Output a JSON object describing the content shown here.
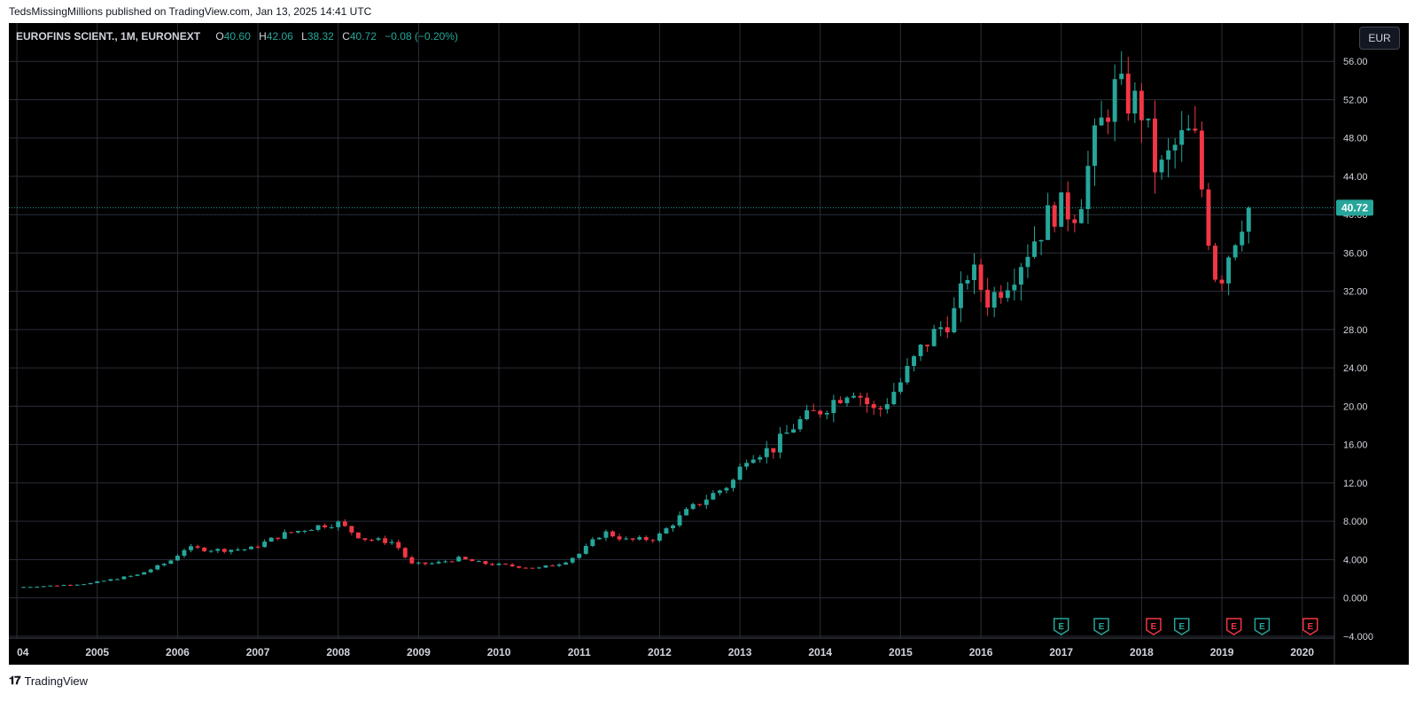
{
  "header": {
    "published_text": "TedsMissingMillions published on TradingView.com, Jan 13, 2025 14:41 UTC"
  },
  "legend": {
    "symbol": "EUROFINS SCIENT., 1M, EURONEXT",
    "o_label": "O",
    "o_value": "40.60",
    "h_label": "H",
    "h_value": "42.06",
    "l_label": "L",
    "l_value": "38.32",
    "c_label": "C",
    "c_value": "40.72",
    "change": "−0.08 (−0.20%)"
  },
  "toolbar": {
    "currency": "EUR"
  },
  "footer": {
    "brand": "TradingView",
    "logo_icon": "tradingview-logo-icon"
  },
  "colors": {
    "up": "#26a69a",
    "down": "#f23645",
    "background": "#000000",
    "grid": "#2a2e39",
    "axis_text": "#d1d4dc",
    "price_line": "#26a69a"
  },
  "chart_data": {
    "type": "candlestick",
    "interval": "1M",
    "currency": "EUR",
    "x_tick_labels": [
      "04",
      "2005",
      "2006",
      "2007",
      "2008",
      "2009",
      "2010",
      "2011",
      "2012",
      "2013",
      "2014",
      "2015",
      "2016",
      "2017",
      "2018",
      "2019",
      "2020"
    ],
    "x_tick_years": [
      2004,
      2005,
      2006,
      2007,
      2008,
      2009,
      2010,
      2011,
      2012,
      2013,
      2014,
      2015,
      2016,
      2017,
      2018,
      2019,
      2020
    ],
    "y_tick_labels": [
      "56.00",
      "52.00",
      "48.00",
      "44.00",
      "40.00",
      "36.00",
      "32.00",
      "28.00",
      "24.00",
      "20.00",
      "16.00",
      "12.00",
      "8.000",
      "4.000",
      "0.000",
      "−4.000"
    ],
    "y_tick_values": [
      56,
      52,
      48,
      44,
      40,
      36,
      32,
      28,
      24,
      20,
      16,
      12,
      8,
      4,
      0,
      -4
    ],
    "ylim": [
      -4.2,
      60
    ],
    "xlim": [
      2003.9,
      2020.4
    ],
    "last_price": 40.72,
    "last_price_label": "40.72",
    "grid": true,
    "anchors": [
      [
        2004.0,
        1.1
      ],
      [
        2004.5,
        1.3
      ],
      [
        2004.9,
        1.5
      ],
      [
        2005.5,
        2.4
      ],
      [
        2005.9,
        3.8
      ],
      [
        2006.1,
        5.2
      ],
      [
        2006.5,
        5.0
      ],
      [
        2006.9,
        5.1
      ],
      [
        2007.3,
        6.6
      ],
      [
        2007.8,
        7.6
      ],
      [
        2008.0,
        7.8
      ],
      [
        2008.3,
        6.2
      ],
      [
        2008.7,
        5.8
      ],
      [
        2008.9,
        3.5
      ],
      [
        2009.2,
        3.6
      ],
      [
        2009.5,
        4.1
      ],
      [
        2009.8,
        3.6
      ],
      [
        2010.2,
        3.3
      ],
      [
        2010.5,
        3.1
      ],
      [
        2010.8,
        3.7
      ],
      [
        2011.0,
        4.6
      ],
      [
        2011.3,
        6.9
      ],
      [
        2011.6,
        6.0
      ],
      [
        2011.95,
        6.2
      ],
      [
        2012.3,
        8.8
      ],
      [
        2012.6,
        10.5
      ],
      [
        2012.9,
        12.0
      ],
      [
        2013.1,
        15.0
      ],
      [
        2013.4,
        15.5
      ],
      [
        2013.7,
        18.2
      ],
      [
        2014.0,
        19.6
      ],
      [
        2014.4,
        22.0
      ],
      [
        2014.7,
        19.2
      ],
      [
        2015.0,
        22.5
      ],
      [
        2015.3,
        26.5
      ],
      [
        2015.7,
        30.0
      ],
      [
        2015.85,
        34.5
      ],
      [
        2016.1,
        31.0
      ],
      [
        2016.4,
        34.0
      ],
      [
        2016.7,
        38.0
      ],
      [
        2016.9,
        40.5
      ],
      [
        2017.2,
        40.5
      ],
      [
        2017.4,
        47.0
      ],
      [
        2017.65,
        53.0
      ],
      [
        2017.85,
        52.0
      ],
      [
        2018.0,
        51.0
      ],
      [
        2018.2,
        44.0
      ],
      [
        2018.45,
        47.5
      ],
      [
        2018.65,
        48.5
      ],
      [
        2018.85,
        37.0
      ],
      [
        2018.95,
        32.5
      ],
      [
        2019.1,
        36.5
      ],
      [
        2019.3,
        40.72
      ]
    ],
    "earnings_markers": [
      {
        "date": 2017.0,
        "label": "E",
        "result": "beat"
      },
      {
        "date": 2017.5,
        "label": "E",
        "result": "beat"
      },
      {
        "date": 2018.15,
        "label": "E",
        "result": "miss"
      },
      {
        "date": 2018.5,
        "label": "E",
        "result": "beat"
      },
      {
        "date": 2019.15,
        "label": "E",
        "result": "miss"
      },
      {
        "date": 2019.5,
        "label": "E",
        "result": "beat"
      },
      {
        "date": 2020.1,
        "label": "E",
        "result": "miss"
      }
    ]
  }
}
